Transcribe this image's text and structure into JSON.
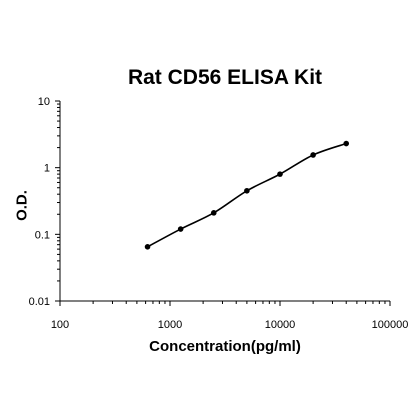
{
  "chart_data": {
    "type": "scatter",
    "title": "Rat CD56 ELISA Kit",
    "xlabel": "Concentration(pg/ml)",
    "ylabel": "O.D.",
    "x_scale": "log",
    "y_scale": "log",
    "xlim": [
      100,
      100000
    ],
    "ylim": [
      0.01,
      10
    ],
    "x_tick_labels": [
      "100",
      "1000",
      "10000",
      "100000"
    ],
    "y_tick_labels": [
      "10",
      "1",
      "0.1",
      "0.01"
    ],
    "grid": false,
    "fit_curve": true,
    "series": [
      {
        "x": [
          625,
          1250,
          2500,
          5000,
          10000,
          20000,
          40000
        ],
        "y": [
          0.065,
          0.12,
          0.21,
          0.45,
          0.8,
          1.55,
          2.3
        ]
      }
    ],
    "colors": {
      "points": "#000000",
      "curve": "#000000",
      "axes": "#000000"
    }
  }
}
